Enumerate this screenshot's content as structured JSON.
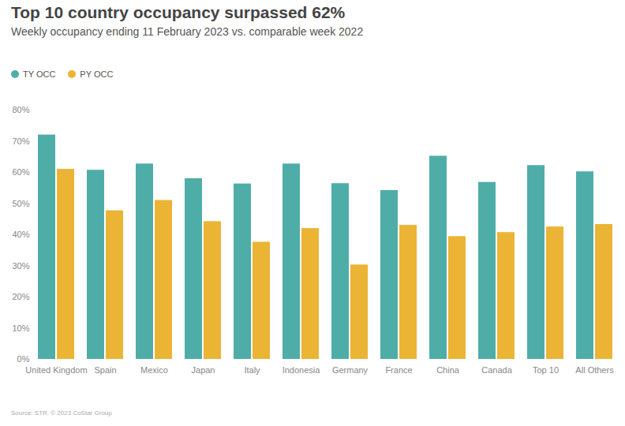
{
  "chart_data": {
    "type": "bar",
    "title": "Top 10 country occupancy surpassed 62%",
    "subtitle": "Weekly occupancy ending 11 February 2023 vs. comparable week 2022",
    "source": "Source: STR. © 2023 CoStar Group",
    "categories": [
      "United Kingdom",
      "Spain",
      "Mexico",
      "Japan",
      "Italy",
      "Indonesia",
      "Germany",
      "France",
      "China",
      "Canada",
      "Top 10",
      "All Others"
    ],
    "series": [
      {
        "name": "TY OCC",
        "color": "#4fada8",
        "values": [
          72.0,
          60.7,
          62.7,
          58.0,
          56.3,
          62.7,
          56.4,
          54.2,
          65.2,
          56.8,
          62.2,
          60.2
        ]
      },
      {
        "name": "PY OCC",
        "color": "#ebb435",
        "values": [
          61.0,
          47.7,
          51.0,
          44.2,
          37.6,
          42.0,
          30.3,
          43.0,
          39.4,
          40.7,
          42.5,
          43.3
        ]
      }
    ],
    "ylim": [
      0,
      80
    ],
    "yticks": [
      {
        "value": 0,
        "label": "0%"
      },
      {
        "value": 10,
        "label": "10%"
      },
      {
        "value": 20,
        "label": "20%"
      },
      {
        "value": 30,
        "label": "30%"
      },
      {
        "value": 40,
        "label": "40%"
      },
      {
        "value": 50,
        "label": "50%"
      },
      {
        "value": 60,
        "label": "60%"
      },
      {
        "value": 70,
        "label": "70%"
      },
      {
        "value": 80,
        "label": "80%"
      }
    ],
    "grid": false,
    "legend": "top-left"
  }
}
